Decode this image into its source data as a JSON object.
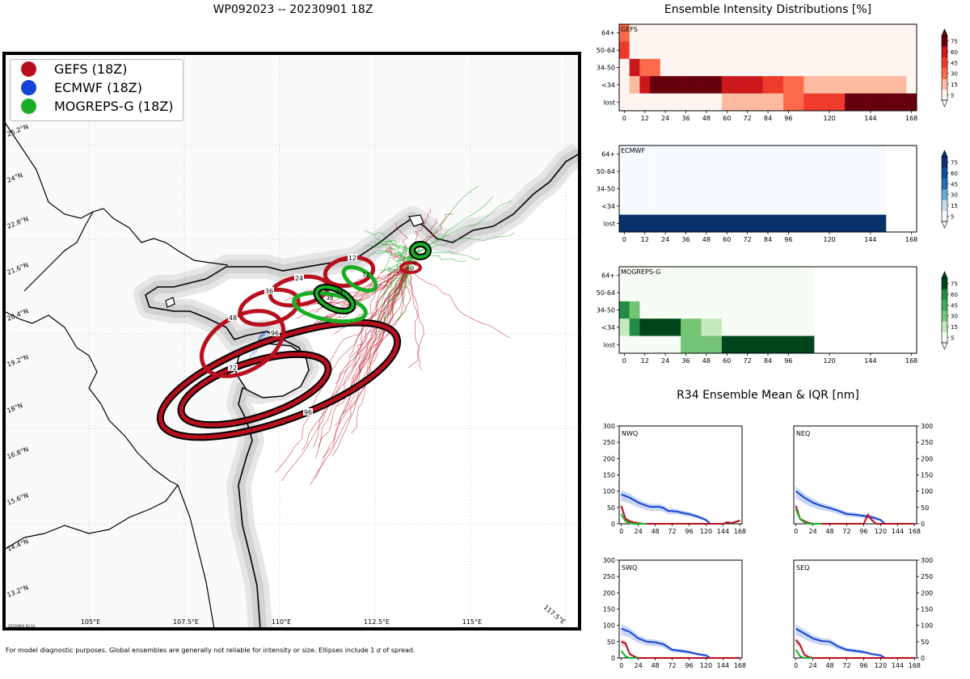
{
  "title": "WP092023 -- 20230901 18Z",
  "footnote": "For model diagnostic purposes. Global ensembles are generally not reliable for intensity or size. Ellipses include 1 σ of spread.",
  "map": {
    "datestamp": "20230902 03:13",
    "lat_labels": [
      "25.2°N",
      "24°N",
      "22.8°N",
      "21.6°N",
      "20.4°N",
      "19.2°N",
      "18°N",
      "16.8°N",
      "15.6°N",
      "14.4°N",
      "13.2°N"
    ],
    "lon_labels": [
      "105°E",
      "107.5°E",
      "110°E",
      "112.5°E",
      "115°E",
      "117.5°E"
    ],
    "legend": [
      {
        "label": "GEFS (18Z)",
        "color": "#b80f1f"
      },
      {
        "label": "ECMWF (18Z)",
        "color": "#1344d6"
      },
      {
        "label": "MOGREPS-G (18Z)",
        "color": "#1aae26"
      }
    ],
    "gefs_ellipse_labels": [
      "12",
      "24",
      "36",
      "48",
      "72",
      "96",
      "96"
    ],
    "mogreps_ellipse_labels": [
      "0",
      "12",
      "24",
      "36"
    ],
    "gefs_center_label": "0",
    "colors": {
      "gefs": "#b80f1f",
      "ecmwf": "#1344d6",
      "mogreps": "#1aae26"
    }
  },
  "chart_data": [
    {
      "type": "heatmap",
      "title": "Ensemble Intensity Distributions [%]",
      "panels": [
        {
          "name": "GEFS",
          "cmap": "reds",
          "valid_hours": 168,
          "rows": [
            "64+",
            "50-64",
            "34-50",
            "<34",
            "lost"
          ],
          "values": [
            [
              40,
              3,
              3,
              3,
              3,
              3,
              3,
              3,
              3,
              3,
              3,
              3,
              3,
              3,
              3,
              3,
              3,
              3,
              3,
              3,
              3,
              3,
              3,
              3,
              3,
              3,
              3,
              3,
              3
            ],
            [
              55,
              8,
              3,
              3,
              3,
              3,
              3,
              3,
              3,
              3,
              3,
              3,
              3,
              3,
              3,
              3,
              3,
              3,
              3,
              3,
              3,
              3,
              3,
              3,
              3,
              3,
              3,
              3,
              3
            ],
            [
              3,
              70,
              30,
              30,
              12,
              12,
              3,
              3,
              3,
              3,
              3,
              3,
              3,
              3,
              3,
              3,
              3,
              3,
              3,
              3,
              3,
              3,
              3,
              3,
              3,
              3,
              3,
              3,
              3
            ],
            [
              3,
              25,
              65,
              80,
              80,
              80,
              80,
              80,
              80,
              80,
              65,
              65,
              65,
              65,
              55,
              55,
              35,
              35,
              28,
              28,
              28,
              28,
              28,
              28,
              28,
              28,
              28,
              28,
              12
            ],
            [
              3,
              3,
              3,
              3,
              3,
              12,
              12,
              12,
              12,
              12,
              18,
              18,
              22,
              22,
              22,
              22,
              30,
              30,
              45,
              45,
              55,
              55,
              75,
              75,
              75,
              75,
              75,
              75,
              80
            ]
          ]
        },
        {
          "name": "ECMWF",
          "cmap": "blues",
          "valid_hours": 150,
          "rows": [
            "64+",
            "50-64",
            "34-50",
            "<34",
            "lost"
          ],
          "values": [
            [
              2,
              2,
              2,
              2,
              2,
              2,
              2,
              2,
              2,
              2,
              2,
              2,
              2,
              2,
              2,
              2,
              2,
              2,
              2,
              2,
              2,
              2,
              2,
              2,
              2,
              2
            ],
            [
              2,
              2,
              2,
              2,
              2,
              2,
              2,
              2,
              2,
              2,
              2,
              2,
              2,
              2,
              2,
              2,
              2,
              2,
              2,
              2,
              2,
              2,
              2,
              2,
              2,
              2
            ],
            [
              2,
              2,
              2,
              2,
              2,
              2,
              2,
              2,
              2,
              2,
              2,
              2,
              2,
              2,
              2,
              2,
              2,
              2,
              2,
              2,
              2,
              2,
              2,
              2,
              2,
              2
            ],
            [
              2,
              2,
              2,
              2,
              2,
              2,
              2,
              2,
              2,
              2,
              2,
              2,
              2,
              2,
              2,
              2,
              2,
              2,
              2,
              2,
              2,
              2,
              2,
              2,
              2,
              2
            ],
            [
              100,
              100,
              100,
              100,
              100,
              100,
              100,
              100,
              100,
              100,
              100,
              100,
              100,
              100,
              100,
              100,
              100,
              100,
              100,
              100,
              100,
              100,
              100,
              100,
              100,
              100
            ]
          ]
        },
        {
          "name": "MOGREPS-G",
          "cmap": "greens",
          "valid_hours": 108,
          "rows": [
            "64+",
            "50-64",
            "34-50",
            "<34",
            "lost"
          ],
          "values": [
            [
              2,
              2,
              2,
              2,
              2,
              2,
              2,
              2,
              2,
              2,
              2,
              2,
              2,
              2,
              2,
              2,
              2,
              2,
              2
            ],
            [
              10,
              2,
              2,
              2,
              2,
              2,
              2,
              2,
              2,
              2,
              2,
              2,
              2,
              2,
              2,
              2,
              2,
              2,
              2
            ],
            [
              65,
              30,
              12,
              12,
              2,
              2,
              2,
              2,
              2,
              2,
              2,
              2,
              2,
              2,
              2,
              2,
              2,
              2,
              2
            ],
            [
              25,
              65,
              85,
              85,
              85,
              85,
              40,
              40,
              28,
              28,
              12,
              12,
              2,
              2,
              2,
              2,
              2,
              2,
              2
            ],
            [
              2,
              2,
              2,
              2,
              2,
              12,
              30,
              30,
              40,
              40,
              85,
              85,
              85,
              85,
              85,
              85,
              85,
              85,
              85
            ]
          ]
        }
      ],
      "x_ticks": [
        0,
        12,
        24,
        36,
        48,
        60,
        72,
        84,
        96,
        120,
        144,
        168
      ],
      "xlim": [
        -3,
        171
      ],
      "colorbar_ticks": [
        "5",
        "15",
        "30",
        "45",
        "60",
        "75"
      ]
    },
    {
      "type": "line",
      "title": "R34 Ensemble Mean & IQR [nm]",
      "x_ticks": [
        0,
        24,
        48,
        72,
        96,
        120,
        144,
        168
      ],
      "y_ticks": [
        0,
        50,
        100,
        150,
        200,
        250,
        300
      ],
      "xlim": [
        -3,
        171
      ],
      "ylim": [
        0,
        300
      ],
      "panels": [
        {
          "name": "NWQ",
          "axis_side": "left",
          "series": [
            {
              "color": "#1344d6",
              "x": [
                0,
                12,
                24,
                36,
                42,
                54,
                60,
                66,
                78,
                90,
                96,
                108,
                120,
                126
              ],
              "y": [
                90,
                80,
                65,
                55,
                52,
                52,
                48,
                40,
                38,
                32,
                30,
                22,
                12,
                0
              ]
            },
            {
              "color": "#b80f1f",
              "x": [
                0,
                6,
                12,
                18,
                24,
                30,
                36,
                48,
                60,
                72,
                96,
                120,
                144,
                150,
                156,
                168
              ],
              "y": [
                55,
                15,
                8,
                4,
                2,
                0,
                0,
                0,
                0,
                0,
                0,
                0,
                0,
                5,
                2,
                10
              ]
            },
            {
              "color": "#1aae26",
              "x": [
                0,
                6,
                12,
                18,
                24,
                36
              ],
              "y": [
                30,
                8,
                2,
                0,
                0,
                0
              ]
            }
          ]
        },
        {
          "name": "NEQ",
          "axis_side": "right",
          "series": [
            {
              "color": "#1344d6",
              "x": [
                0,
                12,
                24,
                36,
                48,
                60,
                72,
                84,
                96,
                108,
                120,
                126
              ],
              "y": [
                100,
                80,
                65,
                55,
                48,
                40,
                30,
                28,
                24,
                20,
                12,
                0
              ]
            },
            {
              "color": "#b80f1f",
              "x": [
                0,
                6,
                12,
                18,
                24,
                36,
                48,
                72,
                96,
                102,
                108,
                114,
                120,
                144,
                168
              ],
              "y": [
                55,
                15,
                8,
                3,
                0,
                0,
                0,
                0,
                0,
                28,
                10,
                0,
                0,
                0,
                0
              ]
            },
            {
              "color": "#1aae26",
              "x": [
                0,
                6,
                12,
                18,
                24,
                36
              ],
              "y": [
                45,
                15,
                5,
                0,
                0,
                0
              ]
            }
          ]
        },
        {
          "name": "SWQ",
          "axis_side": "left",
          "series": [
            {
              "color": "#1344d6",
              "x": [
                0,
                12,
                24,
                36,
                48,
                60,
                72,
                84,
                96,
                108,
                120,
                126
              ],
              "y": [
                90,
                80,
                60,
                50,
                48,
                42,
                25,
                22,
                18,
                12,
                8,
                0
              ]
            },
            {
              "color": "#b80f1f",
              "x": [
                0,
                6,
                12,
                18,
                24,
                36,
                48,
                96,
                168
              ],
              "y": [
                50,
                45,
                12,
                5,
                0,
                0,
                0,
                0,
                0
              ]
            },
            {
              "color": "#1aae26",
              "x": [
                0,
                6,
                12,
                18,
                24
              ],
              "y": [
                22,
                5,
                0,
                0,
                0
              ]
            }
          ]
        },
        {
          "name": "SEQ",
          "axis_side": "right",
          "series": [
            {
              "color": "#1344d6",
              "x": [
                0,
                12,
                24,
                36,
                48,
                60,
                72,
                84,
                96,
                108,
                120,
                126
              ],
              "y": [
                90,
                75,
                60,
                52,
                50,
                35,
                25,
                22,
                18,
                12,
                8,
                0
              ]
            },
            {
              "color": "#b80f1f",
              "x": [
                0,
                6,
                12,
                18,
                24,
                36,
                48,
                96,
                168
              ],
              "y": [
                55,
                40,
                10,
                3,
                0,
                0,
                0,
                0,
                0
              ]
            },
            {
              "color": "#1aae26",
              "x": [
                0,
                6,
                12,
                18,
                24
              ],
              "y": [
                25,
                5,
                0,
                0,
                0
              ]
            }
          ]
        }
      ]
    }
  ]
}
